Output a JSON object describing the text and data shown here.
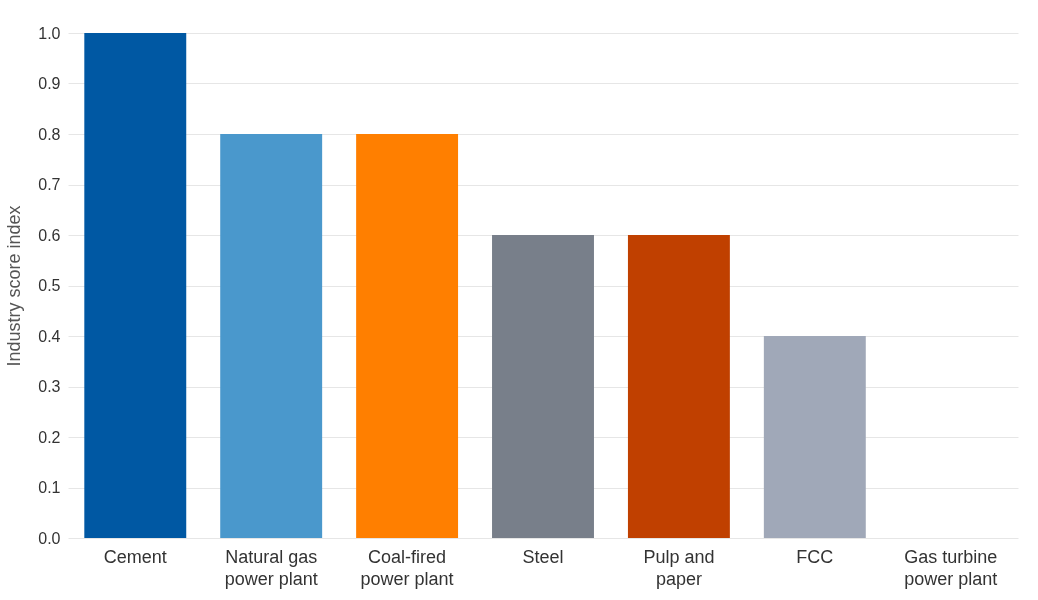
{
  "chart_data": {
    "type": "bar",
    "ylabel": "Industry score index",
    "categories": [
      "Cement",
      "Natural gas power plant",
      "Coal-fired power plant",
      "Steel",
      "Pulp and paper",
      "FCC",
      "Gas turbine power plant"
    ],
    "values": [
      1.0,
      0.8,
      0.8,
      0.6,
      0.6,
      0.4,
      0.0
    ],
    "colors": [
      "#0058a3",
      "#4a98cc",
      "#ff7f00",
      "#787f8a",
      "#c04000",
      "#a0a8b8",
      "#5b9bd5"
    ],
    "ylim": [
      0,
      1
    ],
    "yticks": [
      {
        "value": 0,
        "label": "0.0"
      },
      0.1,
      0.2,
      0.3,
      0.4,
      0.5,
      0.6,
      0.7,
      0.8,
      0.9,
      {
        "value": 1,
        "label": "1.0"
      }
    ],
    "grid": "y"
  }
}
